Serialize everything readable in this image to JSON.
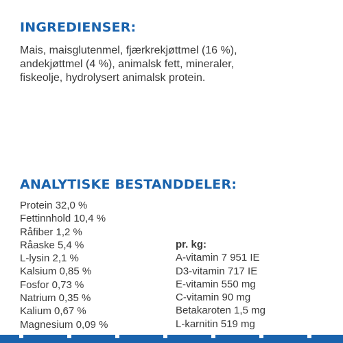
{
  "ingredients": {
    "heading": "INGREDIENSER:",
    "lines": [
      "Mais, maisglutenmel, fjærkrekjøttmel (16 %),",
      "andekjøttmel (4 %), animalsk fett, mineraler,",
      "fiskeolje, hydrolysert animalsk protein."
    ]
  },
  "analytic": {
    "heading": "ANALYTISKE BESTANDDELER:",
    "left_items": [
      "Protein 32,0 %",
      "Fettinnhold 10,4 %",
      "Råfiber 1,2 %",
      "Råaske 5,4 %",
      "L-lysin 2,1 %",
      "Kalsium 0,85 %",
      "Fosfor 0,73 %",
      "Natrium 0,35 %",
      "Kalium 0,67 %",
      "Magnesium 0,09 %"
    ],
    "per_kg_label": "pr. kg:",
    "right_items": [
      "A-vitamin 7 951 IE",
      "D3-vitamin 717 IE",
      "E-vitamin 550 mg",
      "C-vitamin 90 mg",
      "Betakaroten 1,5 mg",
      "L-karnitin 519 mg"
    ]
  },
  "colors": {
    "heading": "#1a63ad",
    "body_text": "#3a3a3a",
    "bottom_bar": "#1a63ad"
  }
}
